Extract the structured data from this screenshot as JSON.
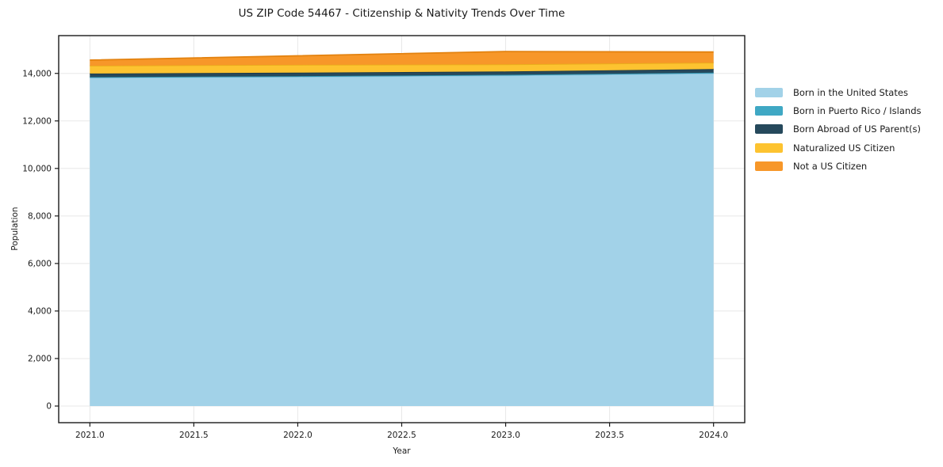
{
  "figure": {
    "background": "#ffffff",
    "text_color": "#1a1a1a",
    "grid_color": "#e8e8e8",
    "spine_color": "#1a1a1a"
  },
  "chart_data": {
    "type": "area",
    "stacked": true,
    "title": "US ZIP Code 54467 - Citizenship & Nativity Trends Over Time",
    "xlabel": "Year",
    "ylabel": "Population",
    "x": [
      2021,
      2022,
      2023,
      2024
    ],
    "series": [
      {
        "name": "Born in the United States",
        "color": "#a2d2e8",
        "edge": "#8cc3dd",
        "values": [
          13820,
          13860,
          13910,
          14000
        ]
      },
      {
        "name": "Born in Puerto Rico / Islands",
        "color": "#3fa8c4",
        "edge": "#2f93ad",
        "values": [
          25,
          25,
          30,
          30
        ]
      },
      {
        "name": "Born Abroad of US Parent(s)",
        "color": "#26495c",
        "edge": "#1d3a49",
        "values": [
          150,
          145,
          140,
          150
        ]
      },
      {
        "name": "Naturalized US Citizen",
        "color": "#fdc330",
        "edge": "#eaae1b",
        "values": [
          330,
          330,
          300,
          270
        ]
      },
      {
        "name": "Not a US Citizen",
        "color": "#f79729",
        "edge": "#e3820f",
        "values": [
          235,
          380,
          540,
          450
        ]
      }
    ],
    "xticks": [
      2021.0,
      2021.5,
      2022.0,
      2022.5,
      2023.0,
      2023.5,
      2024.0
    ],
    "yticks": [
      0,
      2000,
      4000,
      6000,
      8000,
      10000,
      12000,
      14000
    ],
    "xlim": [
      2020.85,
      2024.15
    ],
    "ylim": [
      -700,
      15590
    ],
    "grid": true,
    "legend_position": "right"
  }
}
